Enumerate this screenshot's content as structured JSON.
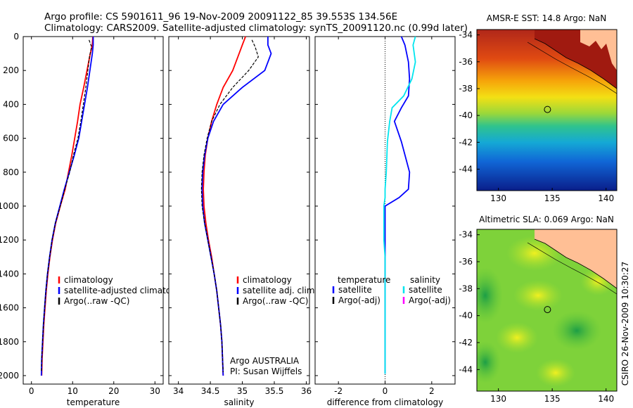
{
  "header": {
    "title_line1": "Argo profile: CS 5901611_96 19-Nov-2009 20091122_85 39.553S 134.56E",
    "title_line2": "Climatology: CARS2009. Satellite-adjusted climatology: synTS_20091120.nc (0.99d later)"
  },
  "side_label": "CSIRO 26-Nov-2009 10:30:27",
  "colors": {
    "climatology": "#ff0000",
    "satellite": "#0000ff",
    "argo": "#000000",
    "sal_diff_satellite": "#00e5ee",
    "sal_diff_argo": "#ff00ff",
    "land": "#ffbf95"
  },
  "chart_data": [
    {
      "type": "line",
      "id": "temperature",
      "xlabel": "temperature",
      "xlim": [
        -2,
        32
      ],
      "ylim": [
        2050,
        0
      ],
      "y_reversed": true,
      "xticks": [
        "0",
        "10",
        "20",
        "30"
      ],
      "yticks": [
        "0",
        "200",
        "400",
        "600",
        "800",
        "1000",
        "1200",
        "1400",
        "1600",
        "1800",
        "2000"
      ],
      "legend": [
        "climatology",
        "satellite-adjusted climatology",
        "Argo(..raw -QC)"
      ],
      "series": [
        {
          "name": "climatology",
          "color": "#ff0000",
          "x": [
            14.9,
            14.8,
            14.3,
            13.5,
            12.7,
            11.8,
            11.2,
            10.5,
            9.8,
            9.0,
            8.2,
            7.0,
            5.9,
            5.1,
            4.5,
            4.0,
            3.6,
            3.3,
            3.0,
            2.8,
            2.6,
            2.5
          ],
          "y": [
            0,
            50,
            100,
            200,
            300,
            400,
            500,
            600,
            700,
            800,
            900,
            1000,
            1100,
            1200,
            1300,
            1400,
            1500,
            1600,
            1700,
            1800,
            1900,
            2000
          ]
        },
        {
          "name": "satellite-adjusted climatology",
          "color": "#0000ff",
          "x": [
            15.0,
            15.0,
            14.8,
            14.2,
            13.6,
            12.9,
            12.2,
            11.5,
            10.4,
            9.2,
            8.0,
            6.9,
            5.8,
            5.0,
            4.4,
            3.9,
            3.5,
            3.2,
            2.9,
            2.7,
            2.5,
            2.4
          ],
          "y": [
            0,
            50,
            100,
            200,
            300,
            400,
            500,
            600,
            700,
            800,
            900,
            1000,
            1100,
            1200,
            1300,
            1400,
            1500,
            1600,
            1700,
            1800,
            1900,
            2000
          ]
        },
        {
          "name": "Argo(..raw -QC)",
          "color": "#000000",
          "dashed": true,
          "x": [
            14.0,
            14.6,
            14.1,
            13.7,
            13.2,
            12.6,
            12.0,
            11.3,
            10.2,
            9.3,
            8.1,
            7.0,
            5.8,
            5.0,
            4.4,
            3.9,
            3.5,
            3.2,
            2.9,
            2.7,
            2.5,
            2.4
          ],
          "y": [
            20,
            60,
            120,
            200,
            300,
            400,
            500,
            600,
            700,
            800,
            900,
            1000,
            1100,
            1200,
            1300,
            1400,
            1500,
            1600,
            1700,
            1800,
            1900,
            1980
          ]
        }
      ]
    },
    {
      "type": "line",
      "id": "salinity",
      "xlabel": "salinity",
      "xlim": [
        33.85,
        36.05
      ],
      "ylim": [
        2050,
        0
      ],
      "y_reversed": true,
      "xticks": [
        "34",
        "34.5",
        "35",
        "35.5",
        "36"
      ],
      "legend": [
        "climatology",
        "satellite adj. clim.",
        "Argo(..raw -QC)"
      ],
      "annotation_line1": "Argo AUSTRALIA",
      "annotation_line2": "PI: Susan Wijffels",
      "series": [
        {
          "name": "climatology",
          "color": "#ff0000",
          "x": [
            35.05,
            35.0,
            34.95,
            34.85,
            34.7,
            34.6,
            34.52,
            34.46,
            34.42,
            34.4,
            34.39,
            34.4,
            34.43,
            34.47,
            34.52,
            34.56,
            34.6,
            34.63,
            34.66,
            34.68,
            34.69,
            34.7
          ],
          "y": [
            0,
            50,
            100,
            200,
            300,
            400,
            500,
            600,
            700,
            800,
            900,
            1000,
            1100,
            1200,
            1300,
            1400,
            1500,
            1600,
            1700,
            1800,
            1900,
            2000
          ]
        },
        {
          "name": "satellite adj. clim.",
          "color": "#0000ff",
          "x": [
            35.4,
            35.4,
            35.45,
            35.35,
            35.0,
            34.7,
            34.55,
            34.46,
            34.41,
            34.38,
            34.37,
            34.38,
            34.41,
            34.46,
            34.51,
            34.56,
            34.6,
            34.63,
            34.66,
            34.68,
            34.69,
            34.7
          ],
          "y": [
            0,
            50,
            100,
            200,
            300,
            400,
            500,
            600,
            700,
            800,
            900,
            1000,
            1100,
            1200,
            1300,
            1400,
            1500,
            1600,
            1700,
            1800,
            1900,
            2000
          ]
        },
        {
          "name": "Argo(..raw -QC)",
          "color": "#000000",
          "dashed": true,
          "x": [
            35.15,
            35.2,
            35.25,
            35.1,
            34.85,
            34.65,
            34.52,
            34.45,
            34.4,
            34.37,
            34.36,
            34.37,
            34.41,
            34.46,
            34.51,
            34.56,
            34.6,
            34.63,
            34.66,
            34.68,
            34.69,
            34.7
          ],
          "y": [
            20,
            60,
            120,
            200,
            300,
            400,
            500,
            600,
            700,
            800,
            900,
            1000,
            1100,
            1200,
            1300,
            1400,
            1500,
            1600,
            1700,
            1800,
            1900,
            1980
          ]
        }
      ]
    },
    {
      "type": "line",
      "id": "difference",
      "xlabel": "difference from climatology",
      "xlim": [
        -3.0,
        3.0
      ],
      "ylim": [
        2050,
        0
      ],
      "y_reversed": true,
      "xticks": [
        "-2",
        "0",
        "2"
      ],
      "legend_temperature_title": "temperature",
      "legend_salinity_title": "salinity",
      "legend_temperature": [
        "satellite",
        "Argo(-adj)"
      ],
      "legend_salinity": [
        "satellite",
        "Argo(-adj)"
      ],
      "series": [
        {
          "name": "temperature satellite",
          "color": "#0000ff",
          "x": [
            0.7,
            0.85,
            1.0,
            1.05,
            1.0,
            0.7,
            0.4,
            0.7,
            1.05,
            1.0,
            0.6,
            0.0,
            0.0,
            0.0,
            0.0,
            0.0,
            0.0,
            0.0,
            0.0,
            0.0,
            0.0
          ],
          "y": [
            0,
            50,
            150,
            250,
            350,
            420,
            500,
            620,
            800,
            900,
            950,
            1000,
            1100,
            1200,
            1300,
            1400,
            1500,
            1600,
            1700,
            1800,
            1990
          ]
        },
        {
          "name": "salinity satellite",
          "color": "#00e5ee",
          "x": [
            1.3,
            1.2,
            1.3,
            1.15,
            0.8,
            0.3,
            0.2,
            0.1,
            0.05,
            0.0,
            0.0,
            -0.05,
            -0.05,
            -0.05,
            0.0,
            0.0,
            0.0,
            0.0,
            0.0,
            0.0,
            0.0
          ],
          "y": [
            0,
            50,
            150,
            250,
            350,
            420,
            500,
            620,
            800,
            900,
            950,
            1000,
            1100,
            1200,
            1300,
            1400,
            1500,
            1600,
            1700,
            1800,
            1990
          ]
        }
      ]
    },
    {
      "type": "heatmap",
      "id": "sst_map",
      "title": "AMSR-E SST: 14.8 Argo: NaN",
      "xlim": [
        128,
        141
      ],
      "ylim": [
        -45.6,
        -33.6
      ],
      "xticks": [
        "130",
        "135",
        "140"
      ],
      "yticks": [
        "-34",
        "-36",
        "-38",
        "-40",
        "-42",
        "-44"
      ],
      "profile_lon": 134.56,
      "profile_lat": -39.553
    },
    {
      "type": "heatmap",
      "id": "sla_map",
      "title": "Altimetric SLA: 0.069 Argo: NaN",
      "xlim": [
        128,
        141
      ],
      "ylim": [
        -45.6,
        -33.6
      ],
      "xticks": [
        "130",
        "135",
        "140"
      ],
      "yticks": [
        "-34",
        "-36",
        "-38",
        "-40",
        "-42",
        "-44"
      ],
      "profile_lon": 134.56,
      "profile_lat": -39.553
    }
  ]
}
